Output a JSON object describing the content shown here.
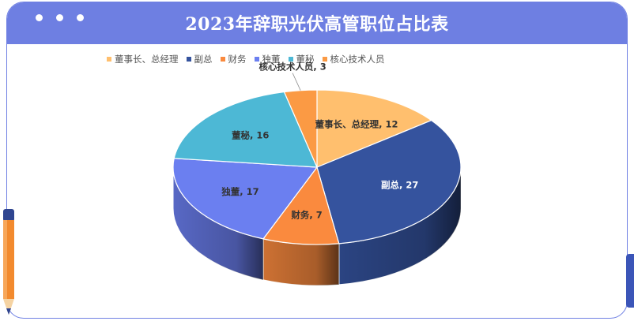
{
  "header": {
    "title": "2023年辞职光伏高管职位占比表"
  },
  "colors": {
    "header_bg": "#6e7fe2",
    "border": "#6f80e3"
  },
  "chart_data": {
    "type": "pie",
    "title": "2023年辞职光伏高管职位占比表",
    "legend_position": "top",
    "slices": [
      {
        "name": "董事长、总经理",
        "value": 12,
        "label": "董事长、总经理, 12",
        "color": "#ffbf6e"
      },
      {
        "name": "副总",
        "value": 27,
        "label": "副总, 27",
        "color": "#35539e"
      },
      {
        "name": "财务",
        "value": 7,
        "label": "财务, 7",
        "color": "#fa8a3e"
      },
      {
        "name": "独董",
        "value": 17,
        "label": "独董, 17",
        "color": "#6b7ff0"
      },
      {
        "name": "董秘",
        "value": 16,
        "label": "董秘, 16",
        "color": "#4db8d5"
      },
      {
        "name": "核心技术人员",
        "value": 3,
        "label": "核心技术人员, 3",
        "color": "#fb9a44"
      }
    ]
  }
}
